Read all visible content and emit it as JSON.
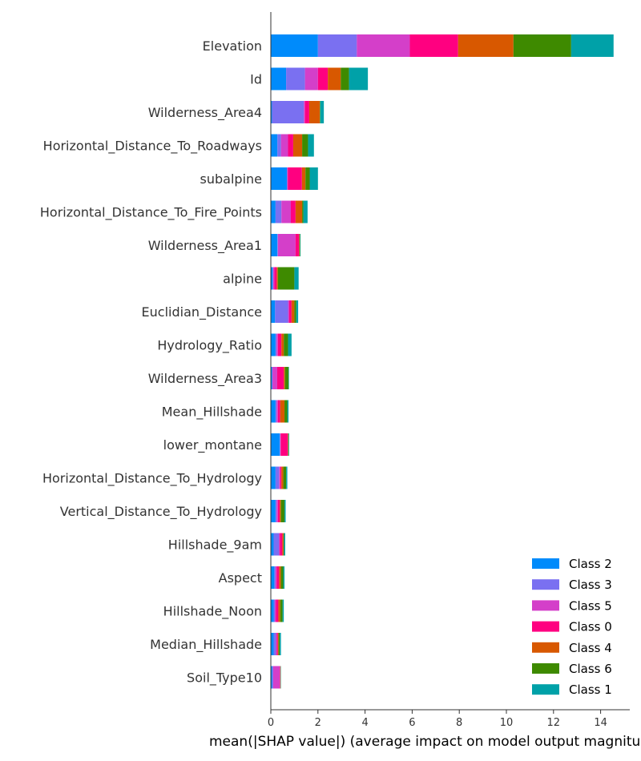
{
  "chart_data": {
    "type": "bar",
    "orientation": "horizontal",
    "stacked": true,
    "xlabel": "mean(|SHAP value|) (average impact on model output magnitude)",
    "xlim": [
      0,
      15.2
    ],
    "xticks": [
      0,
      2,
      4,
      6,
      8,
      10,
      12,
      14
    ],
    "grid": false,
    "legend_position": "bottom-right",
    "categories": [
      "Elevation",
      "Id",
      "Wilderness_Area4",
      "Horizontal_Distance_To_Roadways",
      "subalpine",
      "Horizontal_Distance_To_Fire_Points",
      "Wilderness_Area1",
      "alpine",
      "Euclidian_Distance",
      "Hydrology_Ratio",
      "Wilderness_Area3",
      "Mean_Hillshade",
      "lower_montane",
      "Horizontal_Distance_To_Hydrology",
      "Vertical_Distance_To_Hydrology",
      "Hillshade_9am",
      "Aspect",
      "Hillshade_Noon",
      "Median_Hillshade",
      "Soil_Type10"
    ],
    "series": [
      {
        "name": "Class 2",
        "color": "#008bfb",
        "values": [
          2.0,
          0.65,
          0.05,
          0.28,
          0.68,
          0.2,
          0.28,
          0.08,
          0.18,
          0.2,
          0.05,
          0.2,
          0.38,
          0.2,
          0.2,
          0.12,
          0.15,
          0.12,
          0.12,
          0.05
        ]
      },
      {
        "name": "Class 3",
        "color": "#7a70f1",
        "values": [
          1.65,
          0.8,
          1.35,
          0.15,
          0.02,
          0.25,
          0.02,
          0.02,
          0.55,
          0.05,
          0.02,
          0.05,
          0.02,
          0.15,
          0.05,
          0.22,
          0.05,
          0.05,
          0.1,
          0.05
        ]
      },
      {
        "name": "Class 5",
        "color": "#d43fc9",
        "values": [
          2.25,
          0.55,
          0.05,
          0.3,
          0.02,
          0.4,
          0.75,
          0.05,
          0.05,
          0.05,
          0.2,
          0.05,
          0.02,
          0.05,
          0.05,
          0.05,
          0.05,
          0.05,
          0.03,
          0.28
        ]
      },
      {
        "name": "Class 0",
        "color": "#ff0080",
        "values": [
          2.05,
          0.42,
          0.18,
          0.22,
          0.6,
          0.2,
          0.15,
          0.1,
          0.1,
          0.15,
          0.28,
          0.1,
          0.3,
          0.05,
          0.08,
          0.1,
          0.1,
          0.1,
          0.05,
          0.02
        ]
      },
      {
        "name": "Class 4",
        "color": "#d85800",
        "values": [
          2.35,
          0.55,
          0.45,
          0.38,
          0.15,
          0.28,
          0.02,
          0.05,
          0.12,
          0.1,
          0.05,
          0.18,
          0.02,
          0.08,
          0.05,
          0.05,
          0.08,
          0.08,
          0.03,
          0.01
        ]
      },
      {
        "name": "Class 6",
        "color": "#3e8a00",
        "values": [
          2.45,
          0.35,
          0.02,
          0.25,
          0.18,
          0.05,
          0.02,
          0.7,
          0.08,
          0.18,
          0.15,
          0.12,
          0.02,
          0.12,
          0.15,
          0.02,
          0.1,
          0.1,
          0.05,
          0.01
        ]
      },
      {
        "name": "Class 1",
        "color": "#00a1a8",
        "values": [
          1.8,
          0.8,
          0.15,
          0.25,
          0.35,
          0.18,
          0.02,
          0.18,
          0.08,
          0.15,
          0.02,
          0.05,
          0.02,
          0.05,
          0.05,
          0.05,
          0.05,
          0.05,
          0.05,
          0.01
        ]
      }
    ]
  }
}
